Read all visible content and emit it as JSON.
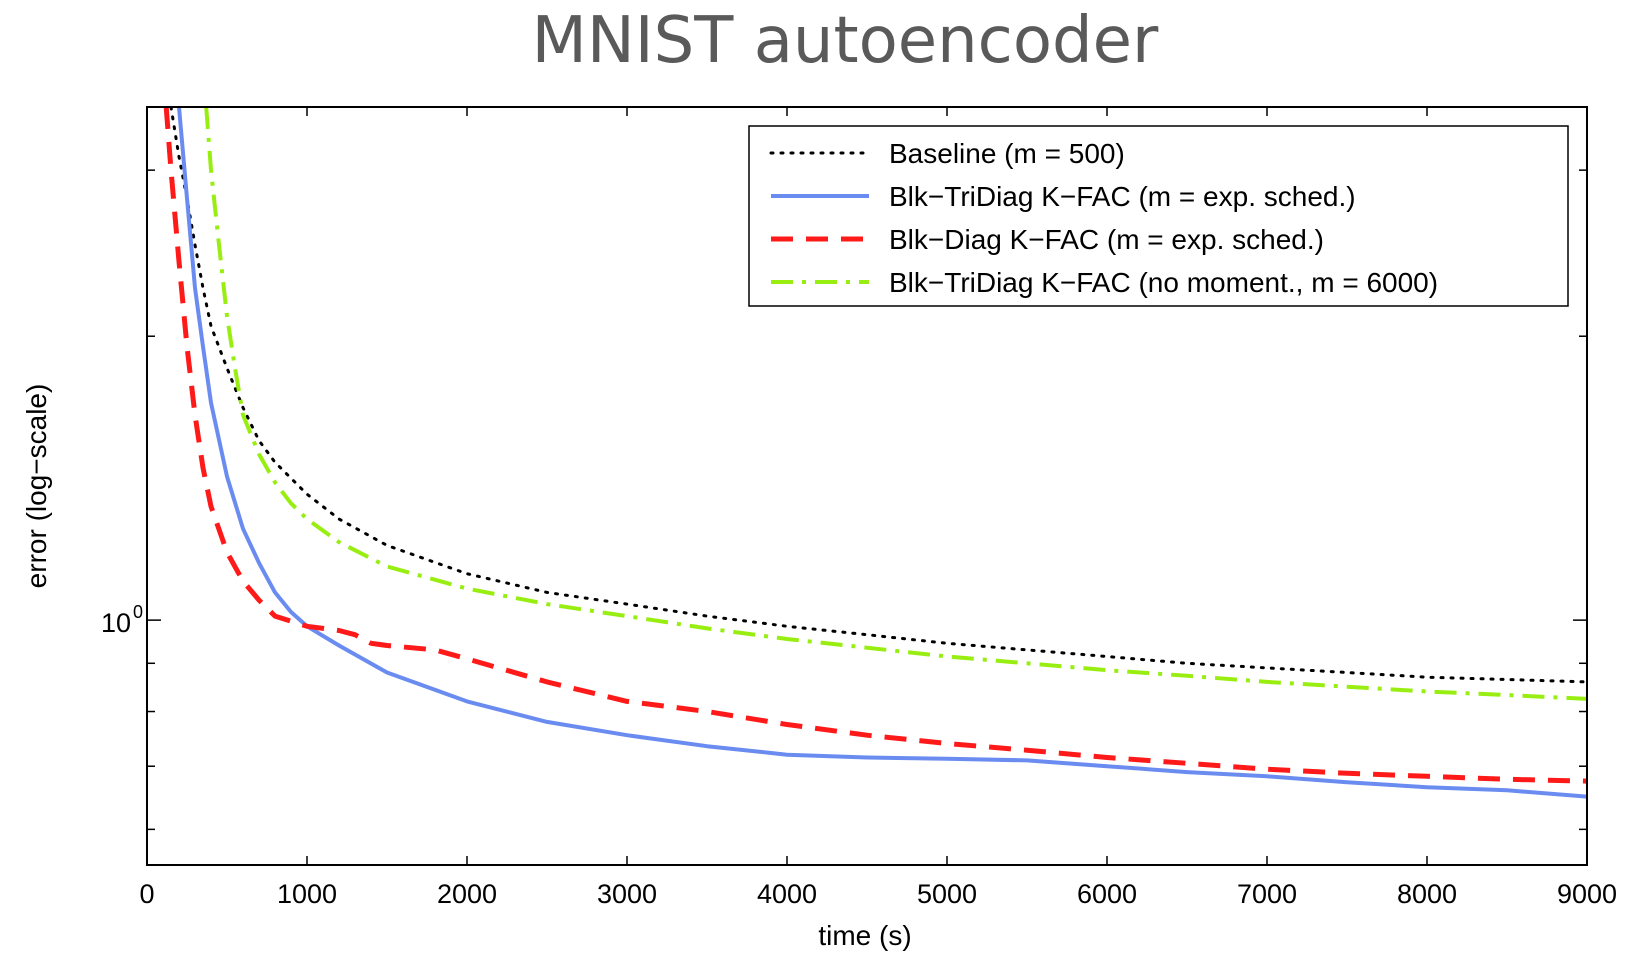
{
  "chart_data": {
    "type": "line",
    "title": "MNIST autoencoder",
    "xlabel": "time (s)",
    "ylabel": "error (log−scale)",
    "xlim": [
      0,
      9000
    ],
    "ylim": [
      0.55,
      3.5
    ],
    "y_scale": "log",
    "x_ticks": [
      0,
      1000,
      2000,
      3000,
      4000,
      5000,
      6000,
      7000,
      8000,
      9000
    ],
    "x_tick_labels": [
      "0",
      "1000",
      "2000",
      "3000",
      "4000",
      "5000",
      "6000",
      "7000",
      "8000",
      "9000"
    ],
    "y_tick_label": {
      "base": "10",
      "exponent": "0",
      "value": 1
    },
    "grid": false,
    "legend_position": "top-right",
    "series": [
      {
        "name": "Baseline (m = 500)",
        "color": "#000000",
        "style": "dotted",
        "x": [
          150,
          200,
          250,
          300,
          350,
          400,
          500,
          600,
          700,
          800,
          1000,
          1200,
          1500,
          2000,
          2500,
          3000,
          3500,
          4000,
          4500,
          5000,
          5500,
          6000,
          6500,
          7000,
          7500,
          8000,
          8500,
          9000
        ],
        "y": [
          3.5,
          3.1,
          2.8,
          2.5,
          2.25,
          2.05,
          1.85,
          1.68,
          1.55,
          1.47,
          1.36,
          1.28,
          1.2,
          1.12,
          1.07,
          1.04,
          1.01,
          0.985,
          0.965,
          0.945,
          0.93,
          0.915,
          0.9,
          0.89,
          0.88,
          0.87,
          0.865,
          0.86
        ]
      },
      {
        "name": "Blk−TriDiag K−FAC (m = exp. sched.)",
        "color": "#6a8cf0",
        "style": "solid",
        "x": [
          200,
          250,
          300,
          350,
          400,
          500,
          600,
          700,
          800,
          900,
          1000,
          1200,
          1500,
          2000,
          2500,
          3000,
          3500,
          4000,
          4500,
          5000,
          5500,
          6000,
          6500,
          7000,
          7500,
          8000,
          8500,
          9000
        ],
        "y": [
          3.5,
          2.8,
          2.25,
          1.95,
          1.7,
          1.42,
          1.25,
          1.15,
          1.07,
          1.02,
          0.985,
          0.94,
          0.88,
          0.82,
          0.78,
          0.755,
          0.735,
          0.72,
          0.715,
          0.713,
          0.71,
          0.7,
          0.69,
          0.683,
          0.673,
          0.665,
          0.66,
          0.65
        ]
      },
      {
        "name": "Blk−Diag K−FAC (m = exp. sched.)",
        "color": "#ff1a1a",
        "style": "dashed",
        "x": [
          120,
          150,
          200,
          250,
          300,
          350,
          400,
          500,
          600,
          700,
          800,
          1000,
          1200,
          1300,
          1400,
          1500,
          1800,
          2000,
          2500,
          3000,
          3500,
          4000,
          4500,
          5000,
          5500,
          6000,
          6500,
          7000,
          7500,
          8000,
          8500,
          9000
        ],
        "y": [
          3.5,
          3.0,
          2.4,
          1.95,
          1.65,
          1.45,
          1.32,
          1.18,
          1.1,
          1.05,
          1.01,
          0.985,
          0.975,
          0.965,
          0.945,
          0.94,
          0.93,
          0.91,
          0.86,
          0.82,
          0.8,
          0.775,
          0.755,
          0.74,
          0.728,
          0.715,
          0.705,
          0.695,
          0.688,
          0.683,
          0.678,
          0.675
        ]
      },
      {
        "name": "Blk−TriDiag K−FAC (no moment., m = 6000)",
        "color": "#99ee11",
        "style": "dash-dot",
        "x": [
          370,
          400,
          450,
          500,
          550,
          600,
          700,
          800,
          900,
          1000,
          1200,
          1500,
          2000,
          2500,
          3000,
          3500,
          4000,
          4500,
          5000,
          5500,
          6000,
          6500,
          7000,
          7500,
          8000,
          8500,
          9000
        ],
        "y": [
          3.5,
          3.0,
          2.5,
          2.1,
          1.85,
          1.65,
          1.5,
          1.4,
          1.33,
          1.28,
          1.21,
          1.14,
          1.08,
          1.04,
          1.01,
          0.98,
          0.955,
          0.935,
          0.915,
          0.9,
          0.885,
          0.873,
          0.86,
          0.85,
          0.84,
          0.833,
          0.825
        ]
      }
    ]
  }
}
